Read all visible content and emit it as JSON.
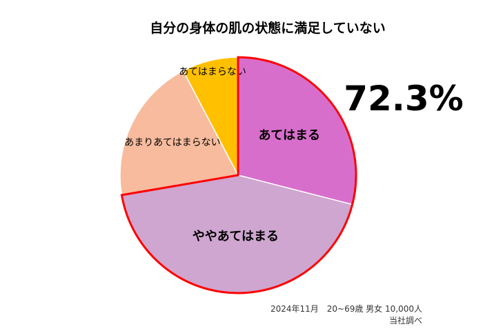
{
  "chart_data": {
    "type": "pie",
    "title": "自分の身体の肌の状態に満足していない",
    "start_angle_deg": 0,
    "direction": "clockwise",
    "slices": [
      {
        "label": "あてはまる",
        "value": 29.0,
        "color": "#D86ECC",
        "highlighted": true
      },
      {
        "label": "ややあてはまる",
        "value": 43.3,
        "color": "#CEA6D0",
        "highlighted": true
      },
      {
        "label": "あまりあてはまらない",
        "value": 20.0,
        "color": "#F8BB9E",
        "highlighted": false
      },
      {
        "label": "あてはまらない",
        "value": 7.7,
        "color": "#FFC000",
        "highlighted": false
      }
    ],
    "highlight_value": "72.3%",
    "highlight_outline_color": "#FF0000",
    "note_lines": [
      "2024年11月　20~69歳 男女 10,000人",
      "当社調べ"
    ]
  }
}
